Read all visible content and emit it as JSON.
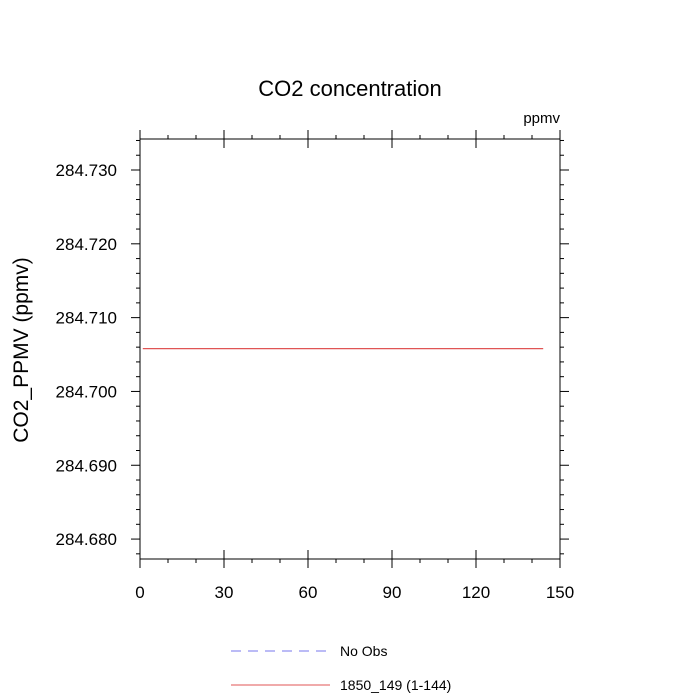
{
  "chart_data": {
    "type": "line",
    "title": "CO2 concentration",
    "units": "ppmv",
    "xlabel": "",
    "ylabel": "CO2_PPMV  (ppmv)",
    "xlim": [
      0,
      150
    ],
    "ylim": [
      284.6773,
      284.7342
    ],
    "x_ticks": [
      0,
      30,
      60,
      90,
      120,
      150
    ],
    "x_tick_labels": [
      "0",
      "30",
      "60",
      "90",
      "120",
      "150"
    ],
    "y_ticks": [
      284.68,
      284.69,
      284.7,
      284.71,
      284.72,
      284.73
    ],
    "y_tick_labels": [
      "284.680",
      "284.690",
      "284.700",
      "284.710",
      "284.720",
      "284.730"
    ],
    "grid": false,
    "legend_position": "bottom",
    "series": [
      {
        "name": "No Obs",
        "color": "#7777ee",
        "dash": true,
        "x": [],
        "y": []
      },
      {
        "name": "1850_149 (1-144)",
        "color": "#e05555",
        "dash": false,
        "x": [
          1,
          144
        ],
        "y": [
          284.7058,
          284.7058
        ]
      }
    ]
  }
}
